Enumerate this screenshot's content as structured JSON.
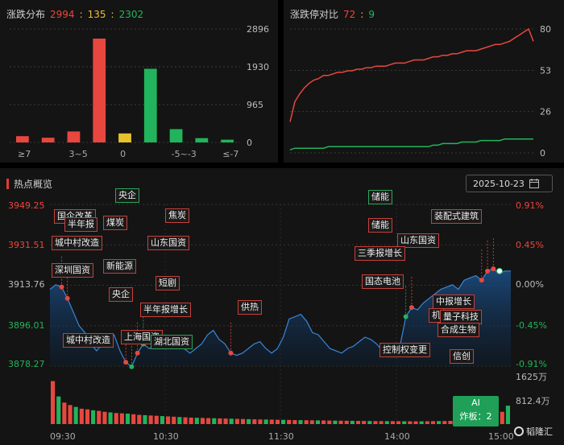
{
  "dist": {
    "title": "涨跌分布",
    "up": "2994",
    "flat": "135",
    "down": "2302",
    "y_ticks": [
      "2896",
      "1930",
      "965",
      "0"
    ],
    "x_labels": [
      "≥7",
      "3~5",
      "0",
      "-5~-3",
      "≤-7"
    ]
  },
  "limit": {
    "title": "涨跌停对比",
    "up": "72",
    "down": "9",
    "y_ticks": [
      "80",
      "53",
      "26",
      "0"
    ]
  },
  "hot": {
    "title": "热点概览",
    "date": "2025-10-23",
    "y_left": [
      "3949.25",
      "3931.51",
      "3913.76",
      "3896.01",
      "3878.27"
    ],
    "y_right": [
      "0.91%",
      "0.45%",
      "0.00%",
      "-0.45%",
      "-0.91%"
    ],
    "vol": [
      "1625万",
      "812.4万"
    ],
    "x_labels": [
      "09:30",
      "10:30",
      "11:30",
      "14:00",
      "15:00"
    ],
    "tags": [
      "国企改革",
      "煤炭",
      "半年报",
      "城中村改造",
      "央企",
      "焦炭",
      "山东国资",
      "深圳国资",
      "新能源",
      "央企",
      "短剧",
      "半年报增长",
      "城中村改造",
      "上海国资",
      "湖北国资",
      "供热",
      "储能",
      "储能",
      "山东国资",
      "三季报增长",
      "装配式建筑",
      "AI",
      "国态电池",
      "中报增长",
      "量子科技",
      "合成生物",
      "控制权变更",
      "信创",
      "机"
    ],
    "ai_label": "AI",
    "ai_sub": "炸板：2",
    "logo": "韬隆汇"
  },
  "chart_data": [
    {
      "type": "bar",
      "title": "涨跌分布",
      "categories": [
        "≥7",
        "",
        "3~5",
        "",
        "0",
        "",
        "-5~-3",
        "",
        "≤-7"
      ],
      "values": [
        160,
        120,
        280,
        2650,
        230,
        1880,
        340,
        110,
        70
      ],
      "colors": [
        "#e8473f",
        "#e8473f",
        "#e8473f",
        "#e8473f",
        "#e8c22c",
        "#22b45c",
        "#22b45c",
        "#22b45c",
        "#22b45c"
      ],
      "ylim": [
        0,
        2896
      ]
    },
    {
      "type": "line",
      "title": "涨跌停对比",
      "ylim": [
        0,
        80
      ],
      "series": [
        {
          "name": "72",
          "color": "#e8473f",
          "values": [
            20,
            33,
            38,
            42,
            45,
            47,
            48,
            50,
            50,
            51,
            52,
            52,
            53,
            53,
            54,
            54,
            55,
            55,
            56,
            56,
            56,
            57,
            58,
            58,
            58,
            59,
            60,
            60,
            60,
            61,
            62,
            62,
            63,
            63,
            64,
            64,
            65,
            66,
            66,
            66,
            67,
            68,
            69,
            70,
            70,
            71,
            72,
            74,
            76,
            78,
            80,
            72
          ]
        },
        {
          "name": "9",
          "color": "#22b45c",
          "values": [
            2,
            3,
            3,
            3,
            3,
            3,
            3,
            3,
            4,
            4,
            4,
            4,
            4,
            4,
            4,
            4,
            4,
            4,
            4,
            4,
            4,
            4,
            4,
            4,
            4,
            4,
            4,
            4,
            4,
            4,
            5,
            5,
            6,
            6,
            6,
            6,
            7,
            7,
            7,
            7,
            8,
            8,
            8,
            8,
            8,
            9,
            9,
            9,
            9,
            9,
            9,
            9
          ]
        }
      ]
    },
    {
      "type": "area",
      "title": "热点概览",
      "ylim": [
        3878.27,
        3949.25
      ],
      "values": [
        3912,
        3914,
        3913,
        3908,
        3902,
        3896,
        3893,
        3888,
        3885,
        3888,
        3890,
        3892,
        3885,
        3880,
        3878,
        3884,
        3888,
        3886,
        3887,
        3889,
        3891,
        3890,
        3888,
        3886,
        3884,
        3886,
        3888,
        3892,
        3894,
        3890,
        3888,
        3884,
        3883,
        3884,
        3886,
        3888,
        3889,
        3886,
        3884,
        3886,
        3891,
        3899,
        3900,
        3901,
        3898,
        3893,
        3892,
        3889,
        3886,
        3885,
        3884,
        3886,
        3887,
        3889,
        3891,
        3890,
        3888,
        3885,
        3886,
        3888,
        3887,
        3900,
        3904,
        3903,
        3906,
        3908,
        3910,
        3912,
        3913,
        3914,
        3912,
        3916,
        3917,
        3918,
        3916,
        3920,
        3921,
        3919,
        3920,
        3920
      ],
      "volume_ylim": [
        0,
        1625
      ],
      "volume_values": [
        1400,
        900,
        700,
        620,
        560,
        500,
        480,
        450,
        430,
        400,
        380,
        360,
        350,
        340,
        320,
        300,
        290,
        280,
        270,
        260,
        250,
        240,
        230,
        220,
        210,
        205,
        200,
        195,
        190,
        185,
        180,
        175,
        170,
        165,
        160,
        155,
        150,
        148,
        145,
        140,
        138,
        135,
        130,
        128,
        125,
        122,
        120,
        118,
        115,
        112,
        110,
        108,
        106,
        104,
        102,
        100,
        98,
        96,
        95,
        94,
        93,
        92,
        91,
        90,
        90,
        92,
        95,
        98,
        100,
        105,
        110,
        120,
        130,
        150,
        170,
        200,
        250,
        300,
        400,
        600
      ]
    }
  ]
}
